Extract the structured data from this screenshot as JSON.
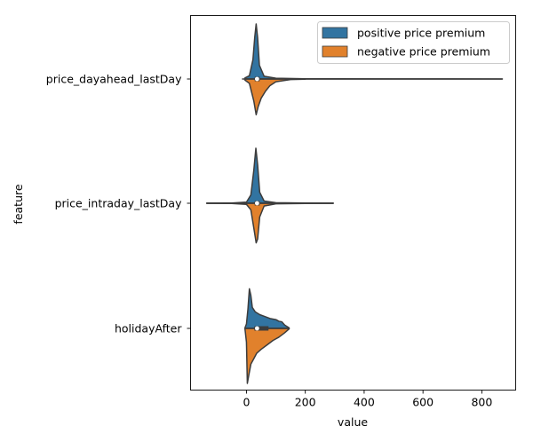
{
  "chart_data": {
    "type": "violin",
    "orientation": "horizontal",
    "split": true,
    "xlabel": "value",
    "ylabel": "feature",
    "xlim": [
      -190,
      915
    ],
    "xticks": [
      0,
      200,
      400,
      600,
      800
    ],
    "categories": [
      "price_dayahead_lastDay",
      "price_intraday_lastDay",
      "holidayAfter"
    ],
    "grid": false,
    "legend": {
      "placement": "top-right"
    },
    "series": [
      {
        "name": "positive price premium",
        "color": "#3274a1"
      },
      {
        "name": "negative price premium",
        "color": "#e1812c"
      }
    ],
    "violins": [
      {
        "category": "price_dayahead_lastDay",
        "whisker": [
          -15,
          870
        ],
        "box": [
          28,
          45
        ],
        "median": 36,
        "upper_profile": [
          [
            -5,
            0.02
          ],
          [
            10,
            0.06
          ],
          [
            22,
            0.35
          ],
          [
            28,
            0.75
          ],
          [
            33,
            1.0
          ],
          [
            38,
            0.75
          ],
          [
            44,
            0.25
          ],
          [
            60,
            0.05
          ],
          [
            100,
            0.015
          ],
          [
            200,
            0.004
          ],
          [
            500,
            0.002
          ],
          [
            870,
            0.001
          ]
        ],
        "lower_profile": [
          [
            -5,
            0.02
          ],
          [
            10,
            0.08
          ],
          [
            25,
            0.4
          ],
          [
            33,
            0.65
          ],
          [
            40,
            0.5
          ],
          [
            50,
            0.35
          ],
          [
            65,
            0.22
          ],
          [
            80,
            0.12
          ],
          [
            100,
            0.05
          ],
          [
            150,
            0.01
          ],
          [
            200,
            0.004
          ]
        ]
      },
      {
        "category": "price_intraday_lastDay",
        "whisker": [
          -135,
          295
        ],
        "box": [
          28,
          45
        ],
        "median": 36,
        "upper_profile": [
          [
            -135,
            0.002
          ],
          [
            -50,
            0.004
          ],
          [
            0,
            0.02
          ],
          [
            15,
            0.15
          ],
          [
            25,
            0.6
          ],
          [
            32,
            1.0
          ],
          [
            38,
            0.7
          ],
          [
            45,
            0.2
          ],
          [
            60,
            0.04
          ],
          [
            100,
            0.01
          ],
          [
            200,
            0.005
          ],
          [
            295,
            0.002
          ]
        ],
        "lower_profile": [
          [
            -135,
            0.002
          ],
          [
            -50,
            0.004
          ],
          [
            0,
            0.02
          ],
          [
            15,
            0.12
          ],
          [
            25,
            0.45
          ],
          [
            33,
            0.72
          ],
          [
            38,
            0.65
          ],
          [
            45,
            0.25
          ],
          [
            60,
            0.05
          ],
          [
            100,
            0.01
          ],
          [
            200,
            0.004
          ],
          [
            295,
            0.002
          ]
        ]
      },
      {
        "category": "holidayAfter",
        "whisker": [
          -5,
          145
        ],
        "box": [
          27,
          75
        ],
        "median": 36,
        "upper_profile": [
          [
            -5,
            0.01
          ],
          [
            0,
            0.08
          ],
          [
            5,
            0.35
          ],
          [
            10,
            0.72
          ],
          [
            15,
            0.6
          ],
          [
            20,
            0.38
          ],
          [
            30,
            0.3
          ],
          [
            45,
            0.25
          ],
          [
            60,
            0.22
          ],
          [
            80,
            0.18
          ],
          [
            100,
            0.16
          ],
          [
            110,
            0.13
          ],
          [
            120,
            0.12
          ],
          [
            130,
            0.06
          ],
          [
            145,
            0.01
          ]
        ],
        "lower_profile": [
          [
            -5,
            0.01
          ],
          [
            0,
            0.25
          ],
          [
            3,
            1.0
          ],
          [
            8,
            0.85
          ],
          [
            15,
            0.65
          ],
          [
            25,
            0.55
          ],
          [
            35,
            0.45
          ],
          [
            50,
            0.38
          ],
          [
            70,
            0.3
          ],
          [
            90,
            0.22
          ],
          [
            110,
            0.16
          ],
          [
            130,
            0.08
          ],
          [
            145,
            0.01
          ]
        ]
      }
    ]
  }
}
